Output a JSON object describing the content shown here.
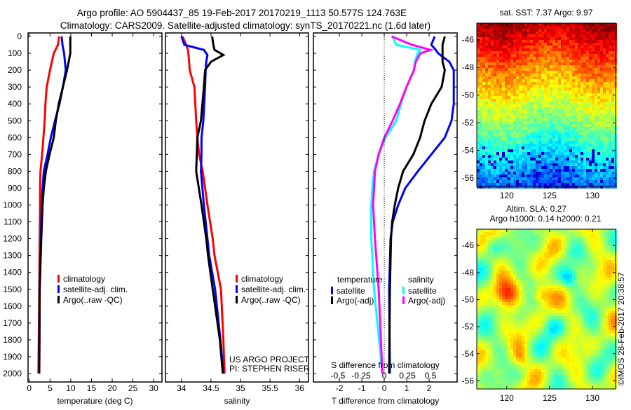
{
  "title_line1": "Argo profile: AO 5904437_85 19-Feb-2017 20170219_1113 50.577S 124.763E",
  "title_line2": "Climatology: CARS2009. Satellite-adjusted climatology: synTS_20170221.nc (1.6d later)",
  "depth_axis": {
    "ticks": [
      0,
      100,
      200,
      300,
      400,
      500,
      600,
      700,
      800,
      900,
      1000,
      1100,
      1200,
      1300,
      1400,
      1500,
      1600,
      1700,
      1800,
      1900,
      2000
    ],
    "range": [
      0,
      2050
    ],
    "inverted": true
  },
  "colors": {
    "climatology": "#ff0000",
    "satellite": "#0000ff",
    "argo": "#000000",
    "sal_satellite": "#00ffff",
    "sal_argo": "#ff00ff"
  },
  "chart_data": [
    {
      "type": "line",
      "name": "temperature",
      "xlabel": "temperature (deg C)",
      "xlim": [
        -0.3,
        32
      ],
      "xticks": [
        0,
        5,
        10,
        15,
        20,
        25,
        30
      ],
      "legend": [
        "climatology",
        "satellite-adj. clim.",
        "Argo(..raw -QC)"
      ],
      "depth": [
        0,
        50,
        100,
        200,
        300,
        400,
        500,
        600,
        700,
        800,
        900,
        1000,
        1200,
        1500,
        2000
      ],
      "series": [
        {
          "name": "climatology",
          "values": [
            7.2,
            6.9,
            5.9,
            5.0,
            4.2,
            3.9,
            3.7,
            3.4,
            3.1,
            2.7,
            2.6,
            2.6,
            2.5,
            2.4,
            2.2
          ]
        },
        {
          "name": "satellite-adj. clim.",
          "values": [
            7.8,
            8.0,
            8.4,
            8.8,
            8.1,
            7.3,
            6.2,
            5.2,
            4.4,
            3.5,
            3.2,
            3.0,
            2.8,
            2.5,
            2.4
          ]
        },
        {
          "name": "Argo(..raw -QC)",
          "values": [
            9.9,
            9.9,
            9.9,
            9.1,
            8.1,
            7.1,
            6.4,
            5.9,
            4.9,
            4.0,
            3.5,
            3.2,
            2.9,
            2.5,
            2.4
          ]
        }
      ]
    },
    {
      "type": "line",
      "name": "salinity",
      "xlabel": "salinity",
      "xlim": [
        33.73,
        36.15
      ],
      "xticks": [
        34,
        34.5,
        35,
        35.5,
        36
      ],
      "legend": [
        "climatology",
        "satellite-adj. clim.",
        "Argo(..raw -QC)"
      ],
      "annotation": [
        "US ARGO PROJECT",
        "PI: STEPHEN RISER"
      ],
      "depth": [
        0,
        50,
        80,
        110,
        150,
        200,
        300,
        500,
        600,
        700,
        800,
        1000,
        1200,
        1300,
        1500,
        1800,
        2000
      ],
      "series": [
        {
          "name": "climatology",
          "values": [
            34.02,
            34.08,
            34.11,
            34.12,
            34.13,
            34.14,
            34.22,
            34.25,
            34.27,
            34.3,
            34.36,
            34.44,
            34.53,
            34.56,
            34.67,
            34.71,
            34.73
          ]
        },
        {
          "name": "satellite-adj. clim.",
          "values": [
            34.0,
            34.05,
            34.38,
            34.44,
            34.42,
            34.41,
            34.4,
            34.37,
            34.34,
            34.34,
            34.33,
            34.38,
            34.44,
            34.47,
            34.57,
            34.66,
            34.71
          ]
        },
        {
          "name": "Argo(..raw -QC)",
          "values": [
            34.52,
            34.54,
            34.56,
            34.71,
            34.5,
            34.4,
            34.38,
            34.33,
            34.27,
            34.26,
            34.25,
            34.34,
            34.42,
            34.45,
            34.53,
            34.65,
            34.7
          ]
        }
      ]
    },
    {
      "type": "line",
      "name": "difference",
      "xlabel": "T difference from climatology",
      "xlabel2": "S difference from climatology",
      "xlim": [
        -3.16,
        3.25
      ],
      "xticks": [
        -2,
        -1,
        0,
        1,
        2
      ],
      "s_xticks": [
        -0.5,
        -0.25,
        0,
        0.25,
        0.5
      ],
      "s_per_t": 0.242,
      "legend_headers": [
        "temperature",
        "salinity"
      ],
      "legend": [
        "satellite",
        "Argo(-adj)",
        "satellite",
        "Argo(-adj)"
      ],
      "depth": [
        0,
        50,
        80,
        100,
        150,
        200,
        300,
        400,
        500,
        600,
        700,
        800,
        900,
        1000,
        1100,
        1200,
        1500,
        2000
      ],
      "series": [
        {
          "name": "T satellite",
          "variable": "T",
          "values": [
            2.25,
            2.1,
            2.3,
            2.4,
            2.9,
            3.1,
            3.1,
            3.1,
            3.0,
            2.7,
            2.1,
            1.5,
            0.94,
            0.62,
            0.38,
            0.28,
            0.22,
            0.25
          ]
        },
        {
          "name": "T Argo(-adj)",
          "variable": "T",
          "values": [
            2.7,
            2.6,
            2.6,
            2.6,
            2.6,
            2.7,
            2.56,
            2.1,
            1.8,
            1.6,
            1.3,
            0.84,
            0.62,
            0.47,
            0.35,
            0.3,
            0.25,
            0.22
          ]
        },
        {
          "name": "S satellite",
          "variable": "S",
          "values": [
            0.09,
            0.13,
            0.39,
            0.36,
            0.33,
            0.32,
            0.24,
            0.18,
            0.13,
            0.015,
            -0.06,
            -0.11,
            -0.13,
            -0.14,
            -0.14,
            -0.14,
            -0.11,
            -0.02
          ]
        },
        {
          "name": "S Argo(-adj)",
          "variable": "S",
          "values": [
            0.08,
            0.3,
            0.5,
            0.39,
            0.34,
            0.32,
            0.24,
            0.17,
            0.09,
            0.0,
            -0.06,
            -0.1,
            -0.11,
            -0.12,
            -0.11,
            -0.1,
            -0.06,
            -0.02
          ]
        }
      ]
    },
    {
      "type": "heatmap",
      "name": "sst-map",
      "title": "sat. SST: 7.37 Argo: 9.97",
      "xlim": [
        116.5,
        132.7
      ],
      "ylim": [
        -56.6,
        -44.8
      ],
      "xticks": [
        120,
        125,
        130
      ],
      "yticks": [
        -46,
        -48,
        -50,
        -52,
        -54,
        -56
      ]
    },
    {
      "type": "heatmap",
      "name": "sla-map",
      "title": "Altim. SLA: 0.27",
      "subtitle": "Argo h1000: 0.14 h2000: 0.21",
      "xlim": [
        116.5,
        132.7
      ],
      "ylim": [
        -56.6,
        -44.8
      ],
      "xticks": [
        120,
        125,
        130
      ],
      "yticks": [
        -46,
        -48,
        -50,
        -52,
        -54,
        -56
      ]
    }
  ],
  "credit": "©IMOS 28-Feb-2017 20:38:57"
}
